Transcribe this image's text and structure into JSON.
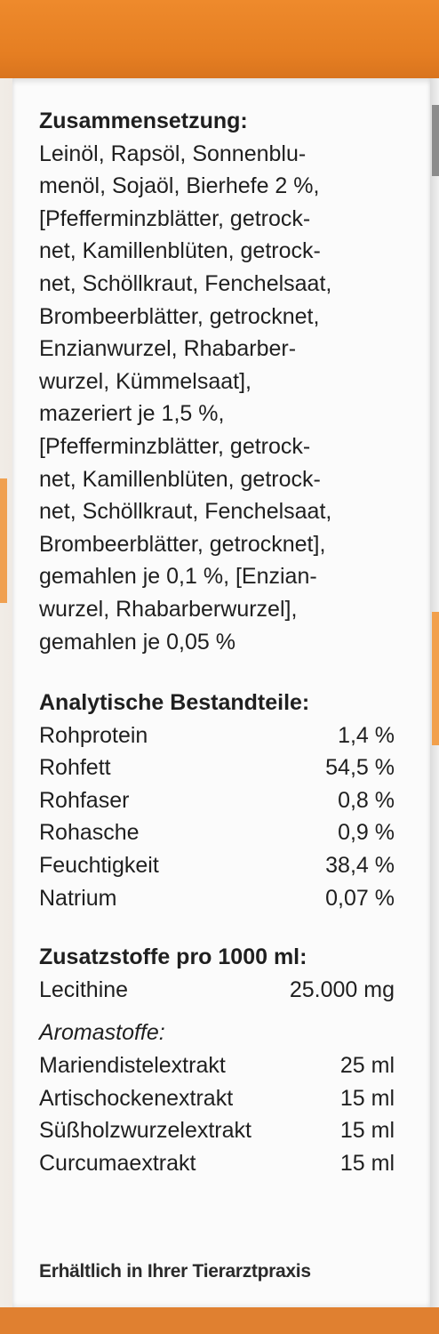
{
  "composition": {
    "heading": "Zusammensetzung:",
    "lines": [
      "Leinöl, Rapsöl, Sonnenblu-",
      "menöl, Sojaöl, Bierhefe 2 %,",
      "[Pfefferminzblätter, getrock-",
      "net, Kamillenblüten, getrock-",
      "net, Schöllkraut, Fenchelsaat,",
      "Brombeerblätter, getrocknet,",
      "Enzianwurzel, Rhabarber-",
      "wurzel, Kümmelsaat],",
      "mazeriert je 1,5 %,",
      "[Pfefferminzblätter, getrock-",
      "net, Kamillenblüten, getrock-",
      "net, Schöllkraut, Fenchelsaat,",
      "Brombeerblätter, getrocknet],",
      "gemahlen je 0,1 %, [Enzian-",
      "wurzel, Rhabarberwurzel],",
      "gemahlen je 0,05 %"
    ]
  },
  "analytics": {
    "heading": "Analytische Bestandteile:",
    "rows": [
      {
        "name": "Rohprotein",
        "value": "1,4 %"
      },
      {
        "name": "Rohfett",
        "value": "54,5 %"
      },
      {
        "name": "Rohfaser",
        "value": "0,8 %"
      },
      {
        "name": "Rohasche",
        "value": "0,9 %"
      },
      {
        "name": "Feuchtigkeit",
        "value": "38,4 %"
      },
      {
        "name": "Natrium",
        "value": "0,07 %"
      }
    ]
  },
  "additives": {
    "heading": "Zusatzstoffe pro 1000 ml:",
    "rows": [
      {
        "name": "Lecithine",
        "value": "25.000 mg"
      }
    ],
    "aroma_heading": "Aromastoffe:",
    "aroma_rows": [
      {
        "name": "Mariendistelextrakt",
        "value": "25 ml"
      },
      {
        "name": "Artischockenextrakt",
        "value": "15 ml"
      },
      {
        "name": "Süßholzwurzelextrakt",
        "value": "15 ml"
      },
      {
        "name": "Curcumaextrakt",
        "value": "15 ml"
      }
    ]
  },
  "footer": {
    "text": "Erhältlich in Ihrer Tierarztpraxis"
  },
  "colors": {
    "orange": "#e8893a",
    "panel": "#fbfbfb",
    "text": "#1f1f1f"
  }
}
